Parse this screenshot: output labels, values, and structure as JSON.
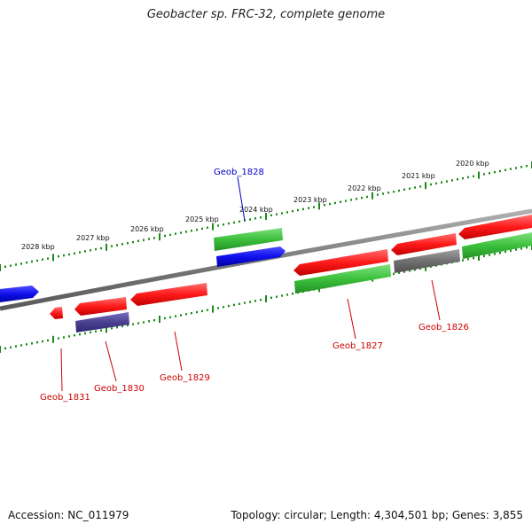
{
  "title": "Geobacter sp. FRC-32, complete genome",
  "footer": {
    "accession": "Accession: NC_011979",
    "summary": "Topology: circular; Length: 4,304,501 bp; Genes: 3,855"
  },
  "colors": {
    "backbone": "#808080",
    "tick": "#1a8a1a",
    "red": "#ff2020",
    "green": "#40c040",
    "blue": "#1010ee",
    "gray": "#707070",
    "purple": "#4a4090",
    "label_red": "#cc0000",
    "label_blue": "#0000cc"
  },
  "scale_labels": [
    "2028 kbp",
    "2027 kbp",
    "2026 kbp",
    "2025 kbp",
    "2024 kbp",
    "2023 kbp",
    "2022 kbp",
    "2021 kbp",
    "2020 kbp"
  ],
  "gene_labels": [
    "Geob_1828",
    "Geob_1827",
    "Geob_1826",
    "Geob_1829",
    "Geob_1830",
    "Geob_1831"
  ]
}
